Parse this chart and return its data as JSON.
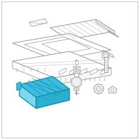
{
  "bg_color": "#ffffff",
  "border_color": "#cccccc",
  "blue_fill": "#3bbde0",
  "blue_edge": "#1a8fb0",
  "blue_inner": "#2aafd0",
  "line_color": "#999999",
  "dark_line": "#777777",
  "thin_line": "#aaaaaa",
  "white": "#ffffff",
  "light_blue": "#7dd8ee"
}
